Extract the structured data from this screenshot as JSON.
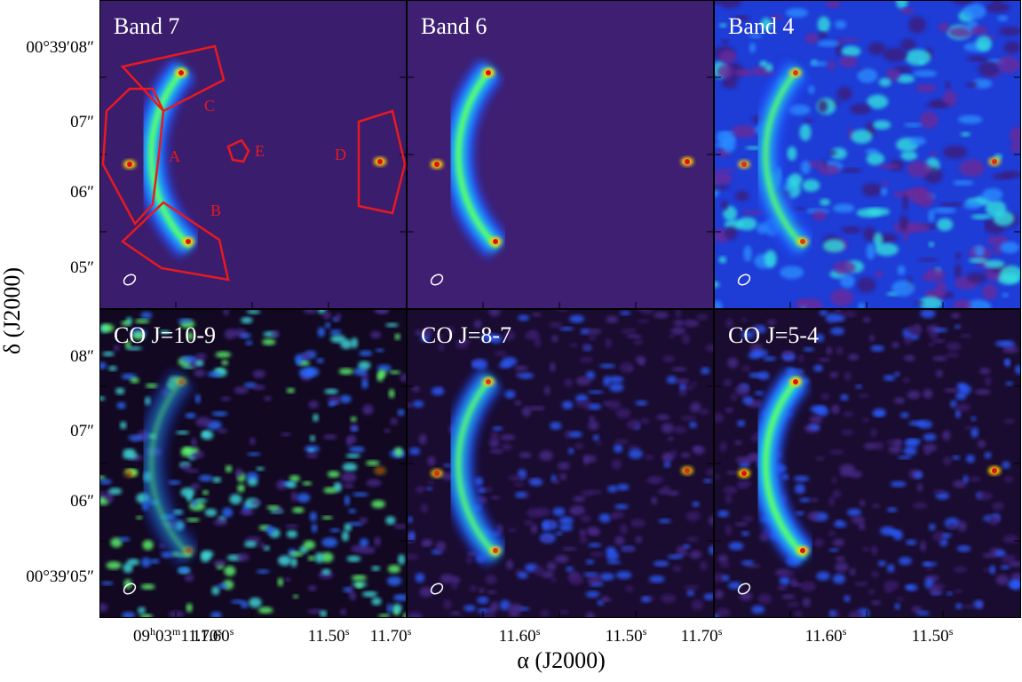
{
  "panels": [
    {
      "label": "Band 7"
    },
    {
      "label": "Band 6"
    },
    {
      "label": "Band 4"
    },
    {
      "label": "CO J=10-9"
    },
    {
      "label": "CO J=8-7"
    },
    {
      "label": "CO J=5-4"
    }
  ],
  "regions": [
    "A",
    "B",
    "C",
    "D",
    "E"
  ],
  "y_ticks_top": [
    "00°39′08″",
    "07″",
    "06″",
    "05″"
  ],
  "y_ticks_bottom": [
    "08″",
    "07″",
    "06″",
    "00°39′05″"
  ],
  "x_ticks": [
    [
      "09",
      "h",
      "03",
      "m",
      "11.70",
      "s"
    ],
    [
      "11.60",
      "s"
    ],
    [
      "11.50",
      "s"
    ],
    [
      "11.70",
      "s"
    ],
    [
      "11.60",
      "s"
    ],
    [
      "11.50",
      "s"
    ],
    [
      "11.70",
      "s"
    ],
    [
      "11.60",
      "s"
    ],
    [
      "11.50",
      "s"
    ]
  ],
  "x_axis_label": "α (J2000)",
  "y_axis_label": "δ (J2000)"
}
